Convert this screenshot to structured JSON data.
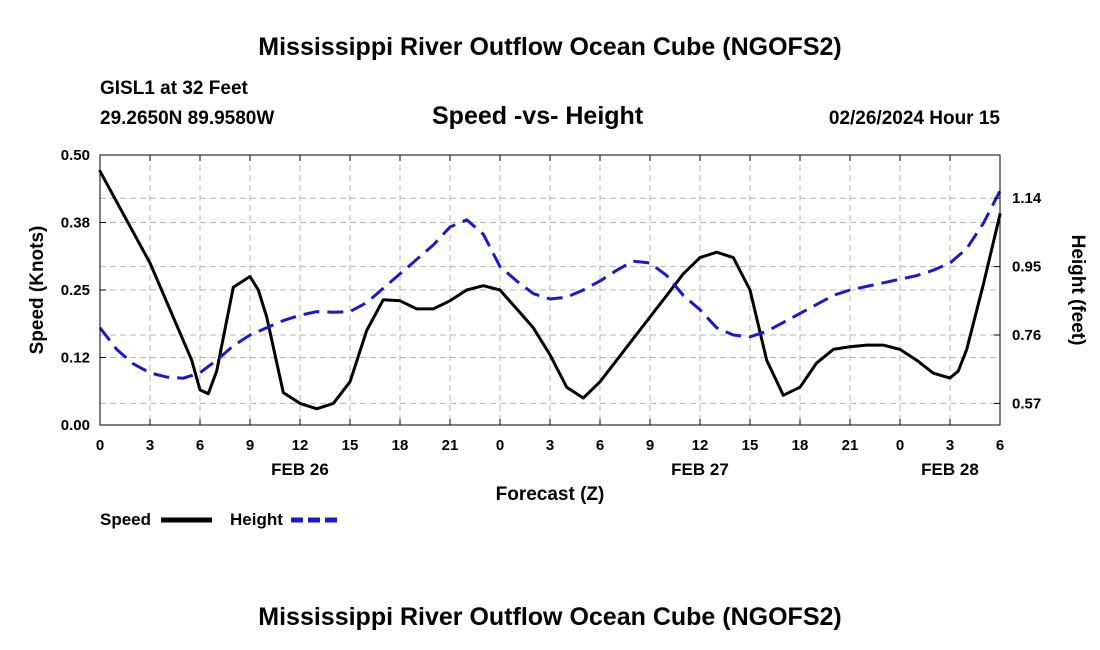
{
  "header": {
    "title": "Mississippi River Outflow Ocean Cube (NGOFS2)",
    "station": "GISL1 at 32 Feet",
    "coords": "29.2650N  89.9580W",
    "subtitle": "Speed -vs- Height",
    "timestamp": "02/26/2024 Hour 15"
  },
  "footer": {
    "title": "Mississippi River Outflow Ocean Cube (NGOFS2)"
  },
  "colors": {
    "speed": "#000000",
    "height": "#1a1acc",
    "grid": "#b4b4b4"
  },
  "chart_data": {
    "type": "line",
    "title": "Speed -vs- Height",
    "xlabel": "Forecast (Z)",
    "ylabel": "Speed (Knots)",
    "y2label": "Height (feet)",
    "xlim": [
      0,
      54
    ],
    "ylim": [
      0,
      0.5
    ],
    "y2lim": [
      0.51,
      1.26
    ],
    "x_ticks": [
      0,
      3,
      6,
      9,
      12,
      15,
      18,
      21,
      24,
      27,
      30,
      33,
      36,
      39,
      42,
      45,
      48,
      51,
      54
    ],
    "x_tick_labels": [
      "0",
      "3",
      "6",
      "9",
      "12",
      "15",
      "18",
      "21",
      "0",
      "3",
      "6",
      "9",
      "12",
      "15",
      "18",
      "21",
      "0",
      "3",
      "6"
    ],
    "y_ticks": [
      0,
      0.125,
      0.25,
      0.375,
      0.5
    ],
    "y_tick_labels": [
      "0.00",
      "0.12",
      "0.25",
      "0.38",
      "0.50"
    ],
    "y2_ticks": [
      0.57,
      0.76,
      0.95,
      1.14
    ],
    "y2_tick_labels": [
      "0.57",
      "0.76",
      "0.95",
      "1.14"
    ],
    "date_labels": [
      {
        "x": 12,
        "label": "FEB 26"
      },
      {
        "x": 36,
        "label": "FEB 27"
      },
      {
        "x": 51,
        "label": "FEB 28"
      }
    ],
    "grid": true,
    "legend": [
      {
        "name": "Speed",
        "style": "solid"
      },
      {
        "name": "Height",
        "style": "dashed"
      }
    ],
    "series": [
      {
        "name": "Speed",
        "axis": "left",
        "style": "solid",
        "x": [
          0,
          3,
          5.5,
          6,
          6.5,
          7,
          8,
          9,
          9.5,
          10,
          11,
          12,
          13,
          14,
          15,
          16,
          17,
          18,
          19,
          20,
          21,
          22,
          23,
          24,
          25,
          26,
          27,
          28,
          29,
          30,
          31,
          32,
          33,
          34,
          35,
          36,
          37,
          38,
          39,
          40,
          41,
          42,
          43,
          44,
          45,
          46,
          47,
          48,
          49,
          50,
          51,
          51.5,
          52,
          53,
          54
        ],
        "y": [
          0.47,
          0.3,
          0.12,
          0.065,
          0.058,
          0.1,
          0.255,
          0.275,
          0.25,
          0.2,
          0.06,
          0.04,
          0.03,
          0.04,
          0.08,
          0.175,
          0.232,
          0.23,
          0.215,
          0.215,
          0.23,
          0.25,
          0.258,
          0.25,
          0.215,
          0.18,
          0.13,
          0.07,
          0.05,
          0.08,
          0.12,
          0.16,
          0.2,
          0.24,
          0.28,
          0.31,
          0.32,
          0.31,
          0.25,
          0.12,
          0.055,
          0.07,
          0.115,
          0.14,
          0.145,
          0.148,
          0.148,
          0.14,
          0.12,
          0.096,
          0.087,
          0.1,
          0.14,
          0.26,
          0.39
        ]
      },
      {
        "name": "Height",
        "axis": "right",
        "style": "dashed",
        "x": [
          0,
          1,
          2,
          3,
          4,
          5,
          6,
          7,
          8,
          9,
          10,
          11,
          12,
          13,
          14,
          15,
          16,
          17,
          18,
          19,
          20,
          21,
          22,
          23,
          24,
          25,
          26,
          27,
          28,
          29,
          30,
          31,
          32,
          33,
          34,
          35,
          36,
          37,
          38,
          39,
          40,
          41,
          42,
          43,
          44,
          45,
          46,
          47,
          48,
          49,
          50,
          51,
          52,
          53,
          54
        ],
        "y": [
          0.78,
          0.72,
          0.68,
          0.655,
          0.643,
          0.64,
          0.655,
          0.69,
          0.73,
          0.76,
          0.78,
          0.8,
          0.815,
          0.825,
          0.823,
          0.825,
          0.85,
          0.89,
          0.93,
          0.97,
          1.01,
          1.06,
          1.08,
          1.04,
          0.95,
          0.91,
          0.875,
          0.86,
          0.865,
          0.885,
          0.91,
          0.94,
          0.965,
          0.96,
          0.925,
          0.87,
          0.83,
          0.78,
          0.76,
          0.755,
          0.77,
          0.795,
          0.82,
          0.845,
          0.87,
          0.885,
          0.895,
          0.905,
          0.915,
          0.925,
          0.94,
          0.96,
          1.0,
          1.07,
          1.16
        ]
      }
    ]
  }
}
